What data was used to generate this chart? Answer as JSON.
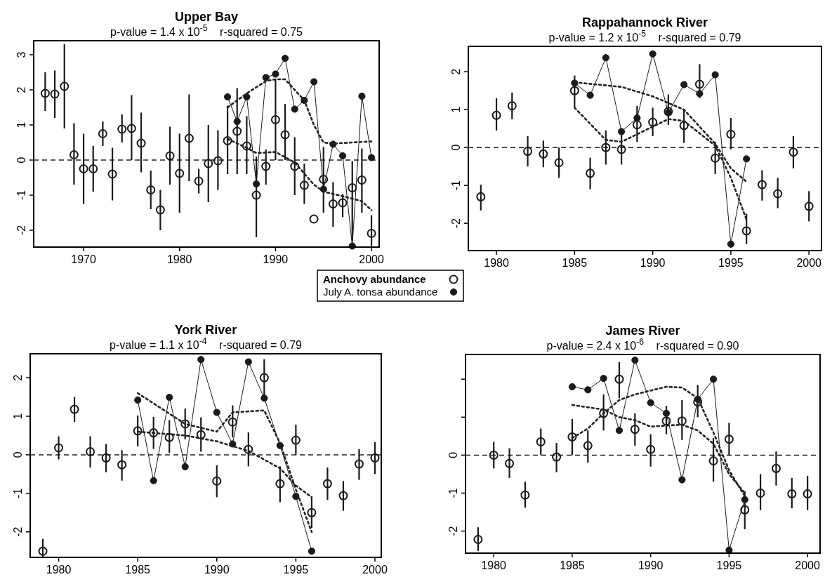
{
  "chart_data": [
    {
      "type": "scatter",
      "title": "Upper Bay",
      "subtitle": "p-value = 1.4 x 10$^{-5}$    r-squared = 0.75",
      "x": [
        1966,
        1967,
        1968,
        1969,
        1970,
        1971,
        1972,
        1973,
        1974,
        1975,
        1976,
        1977,
        1978,
        1979,
        1980,
        1981,
        1982,
        1983,
        1984,
        1985,
        1986,
        1987,
        1988,
        1989,
        1990,
        1991,
        1992,
        1993,
        1994,
        1995,
        1996,
        1997,
        1998,
        1999,
        2000
      ],
      "xlim": [
        1964.8,
        2000.8
      ],
      "ylim": [
        -2.48,
        3.4
      ],
      "xticks": [
        1970,
        1980,
        1990,
        2000
      ],
      "yticks": [
        -2,
        -1,
        0,
        1,
        2,
        3
      ],
      "legend": "bottom right",
      "ref_lines": [
        {
          "axis": "y",
          "value": 0,
          "line_style": "dashed",
          "color": "#222222"
        }
      ],
      "series": [
        {
          "name": "Anchovy abundance",
          "type": "scatter",
          "marker": "circle",
          "color": "#1a1a1a",
          "values": [
            1.9,
            1.88,
            2.1,
            0.15,
            -0.25,
            -0.25,
            0.75,
            -0.4,
            0.88,
            0.9,
            0.48,
            -0.85,
            -1.42,
            0.12,
            -0.38,
            0.62,
            -0.6,
            -0.1,
            -0.02,
            0.55,
            0.82,
            0.4,
            -1.0,
            -0.18,
            1.15,
            0.72,
            -0.18,
            -0.72,
            -1.68,
            -0.55,
            -1.25,
            -1.22,
            -0.79,
            -0.57,
            -2.09
          ],
          "errors": [
            [
              1.4,
              2.5
            ],
            [
              1.2,
              2.55
            ],
            [
              0.9,
              3.3
            ],
            [
              -0.7,
              1.05
            ],
            [
              -1.25,
              0.75
            ],
            [
              -0.9,
              0.4
            ],
            [
              0.4,
              1.1
            ],
            [
              -1.15,
              0.35
            ],
            [
              0.5,
              1.3
            ],
            [
              0,
              1.85
            ],
            [
              -0.35,
              1.35
            ],
            [
              -1.4,
              -0.3
            ],
            [
              -2.0,
              -0.85
            ],
            [
              -0.7,
              0.95
            ],
            [
              -1.5,
              0.75
            ],
            [
              -0.6,
              1.87
            ],
            [
              -0.95,
              -0.25
            ],
            [
              -1.2,
              1.0
            ],
            [
              -0.85,
              0.85
            ],
            [
              -0.4,
              1.55
            ],
            [
              -0.4,
              2.05
            ],
            [
              -0.4,
              1.25
            ],
            [
              -2.2,
              0.1
            ],
            [
              -0.7,
              0.3
            ],
            [
              0,
              2.3
            ],
            [
              0,
              1.6
            ],
            [
              -1.0,
              0.65
            ],
            [
              -1.25,
              -0.1
            ],
            null,
            [
              -1.5,
              0.37
            ],
            [
              -1.9,
              -0.63
            ],
            [
              -1.63,
              -0.97
            ],
            [
              -2.3,
              -0.03
            ],
            [
              -1.5,
              0.33
            ],
            [
              -2.45,
              -1.57
            ]
          ]
        },
        {
          "name": "July A. tonsa abundance",
          "type": "line",
          "marker": "circle",
          "color": "#1a1a1a",
          "x": [
            1985,
            1986,
            1987,
            1988,
            1989,
            1990,
            1991,
            1992,
            1993,
            1994,
            1995,
            1996,
            1997,
            1998,
            1999,
            2000
          ],
          "values": [
            1.8,
            1.1,
            1.8,
            -0.68,
            2.35,
            2.45,
            2.9,
            1.45,
            1.7,
            2.23,
            -0.83,
            0.45,
            0.12,
            -2.45,
            1.82,
            0.07
          ]
        },
        {
          "type": "line",
          "marker": "none",
          "line_style": "dotted",
          "color": "#222222",
          "x": [
            1985,
            1987,
            1989,
            1990,
            1991,
            1993,
            1994,
            1995,
            1996,
            1998,
            2000
          ],
          "values": [
            1.5,
            1.9,
            2.25,
            2.3,
            2.3,
            1.7,
            1.0,
            0.5,
            0.47,
            0.5,
            0.53
          ]
        },
        {
          "type": "line",
          "marker": "none",
          "line_style": "dotted",
          "color": "#222222",
          "x": [
            1985,
            1987,
            1988,
            1990,
            1992,
            1994,
            1995,
            1997,
            1999,
            2000
          ],
          "values": [
            0.6,
            0.35,
            0.2,
            0.23,
            -0.07,
            -0.7,
            -0.9,
            -1.03,
            -1.17,
            -1.43
          ]
        }
      ]
    },
    {
      "type": "scatter",
      "title": "Rappahannock River",
      "subtitle": "p-value = 1.2 x 10$^{-5}$    r-squared = 0.79",
      "x": [
        1979,
        1980,
        1981,
        1982,
        1983,
        1984,
        1985,
        1986,
        1987,
        1988,
        1989,
        1990,
        1991,
        1992,
        1993,
        1994,
        1995,
        1996,
        1997,
        1998,
        1999,
        2000
      ],
      "xlim": [
        1978.2,
        2000.8
      ],
      "ylim": [
        -2.72,
        2.67
      ],
      "xticks": [
        1980,
        1985,
        1990,
        1995,
        2000
      ],
      "yticks": [
        -2,
        -1,
        0,
        1,
        2
      ],
      "ref_lines": [
        {
          "axis": "y",
          "value": 0,
          "line_style": "dashed",
          "color": "#222222"
        }
      ],
      "series": [
        {
          "type": "scatter",
          "marker": "circle",
          "color": "#1a1a1a",
          "values": [
            -1.3,
            0.85,
            1.1,
            -0.1,
            -0.17,
            -0.4,
            1.5,
            -0.68,
            0,
            -0.05,
            0.6,
            0.67,
            0.95,
            0.58,
            1.67,
            -0.28,
            0.35,
            -2.2,
            -0.98,
            -1.22,
            -0.12,
            -1.55
          ],
          "errors": [
            [
              -1.66,
              -0.98
            ],
            [
              0.45,
              1.3
            ],
            [
              0.75,
              1.45
            ],
            [
              -0.5,
              0.3
            ],
            [
              -0.52,
              0.18
            ],
            [
              -0.8,
              0
            ],
            [
              1.05,
              1.9
            ],
            [
              -1.1,
              -0.27
            ],
            [
              -0.45,
              0.45
            ],
            [
              -0.45,
              0.45
            ],
            [
              0.15,
              1.1
            ],
            [
              0.3,
              1.05
            ],
            [
              0.6,
              1.4
            ],
            [
              0.12,
              1.0
            ],
            [
              1.3,
              2.2
            ],
            [
              -0.7,
              0.15
            ],
            [
              -0.05,
              0.78
            ],
            [
              -2.55,
              -1.75
            ],
            [
              -1.4,
              -0.6
            ],
            [
              -1.6,
              -0.8
            ],
            [
              -0.55,
              0.3
            ],
            [
              -1.95,
              -1.15
            ]
          ]
        },
        {
          "type": "line",
          "marker": "circle",
          "color": "#1a1a1a",
          "x": [
            1985,
            1986,
            1987,
            1988,
            1989,
            1990,
            1991,
            1992,
            1993,
            1994,
            1995,
            1996
          ],
          "values": [
            1.7,
            1.38,
            2.37,
            0.42,
            0.78,
            2.47,
            0.92,
            1.66,
            1.42,
            1.92,
            -2.55,
            -0.3
          ]
        },
        {
          "type": "line",
          "marker": "none",
          "line_style": "dotted",
          "color": "#222222",
          "x": [
            1985,
            1988,
            1990,
            1992,
            1994,
            1995,
            1996
          ],
          "values": [
            1.72,
            1.6,
            1.35,
            1.0,
            0.1,
            -0.55,
            -0.9
          ]
        },
        {
          "type": "line",
          "marker": "none",
          "line_style": "dotted",
          "color": "#222222",
          "x": [
            1985,
            1987,
            1988,
            1990,
            1991,
            1992,
            1994,
            1995,
            1996
          ],
          "values": [
            1.05,
            0.2,
            0.15,
            0.55,
            0.75,
            0.7,
            0.05,
            -0.8,
            -1.9
          ]
        }
      ]
    },
    {
      "type": "scatter",
      "title": "York River",
      "subtitle": "p-value = 1.1 x 10$^{-4}$    r-squared = 0.79",
      "x": [
        1979,
        1980,
        1981,
        1982,
        1983,
        1984,
        1985,
        1986,
        1987,
        1988,
        1989,
        1990,
        1991,
        1992,
        1993,
        1994,
        1995,
        1996,
        1997,
        1998,
        1999,
        2000
      ],
      "xlim": [
        1978.2,
        2000.4
      ],
      "ylim": [
        -2.66,
        2.62
      ],
      "xticks": [
        1980,
        1985,
        1990,
        1995,
        2000
      ],
      "yticks": [
        -2,
        -1,
        0,
        1,
        2
      ],
      "ref_lines": [
        {
          "axis": "y",
          "value": 0,
          "line_style": "dashed",
          "color": "#222222"
        }
      ],
      "series": [
        {
          "type": "scatter",
          "marker": "circle",
          "color": "#1a1a1a",
          "values": [
            -2.5,
            0.18,
            1.18,
            0.08,
            -0.08,
            -0.26,
            0.62,
            0.57,
            0.45,
            0.8,
            0.52,
            -0.68,
            0.85,
            0.14,
            2.0,
            -0.75,
            0.38,
            -1.5,
            -0.75,
            -1.06,
            -0.24,
            -0.08
          ],
          "errors": [
            [
              -2.65,
              -2.18
            ],
            [
              -0.12,
              0.48
            ],
            [
              0.85,
              1.5
            ],
            [
              -0.33,
              0.48
            ],
            [
              -0.45,
              0.28
            ],
            [
              -0.67,
              0.12
            ],
            [
              0.22,
              1.02
            ],
            [
              0.15,
              0.98
            ],
            [
              0.05,
              0.9
            ],
            [
              0.4,
              1.2
            ],
            [
              0.08,
              0.97
            ],
            [
              -1.1,
              -0.27
            ],
            [
              0.45,
              1.28
            ],
            [
              -0.3,
              0.58
            ],
            [
              1.55,
              2.48
            ],
            [
              -1.23,
              -0.3
            ],
            [
              0,
              0.78
            ],
            [
              -1.9,
              -1.1
            ],
            [
              -1.17,
              -0.33
            ],
            [
              -1.45,
              -0.68
            ],
            [
              -0.65,
              0.15
            ],
            [
              -0.5,
              0.33
            ]
          ]
        },
        {
          "type": "line",
          "marker": "circle",
          "color": "#1a1a1a",
          "x": [
            1985,
            1986,
            1987,
            1988,
            1989,
            1990,
            1991,
            1992,
            1993,
            1994,
            1995,
            1996
          ],
          "values": [
            1.42,
            -0.67,
            1.49,
            -0.31,
            2.47,
            1.1,
            0.28,
            2.41,
            1.47,
            0.24,
            -1.08,
            -2.5
          ]
        },
        {
          "type": "line",
          "marker": "none",
          "line_style": "dotted",
          "color": "#222222",
          "x": [
            1985,
            1988,
            1990,
            1991,
            1993,
            1994,
            1995,
            1996
          ],
          "values": [
            1.6,
            0.8,
            0.6,
            1.1,
            1.15,
            0.3,
            -0.9,
            -2.0
          ]
        },
        {
          "type": "line",
          "marker": "none",
          "line_style": "dotted",
          "color": "#222222",
          "x": [
            1985,
            1988,
            1990,
            1992,
            1994,
            1995,
            1996
          ],
          "values": [
            0.6,
            0.5,
            0.35,
            0.1,
            -0.35,
            -0.8,
            -1.1
          ]
        }
      ]
    },
    {
      "type": "scatter",
      "title": "James River",
      "subtitle": "p-value = 2.4 x 10$^{-6}$    r-squared = 0.90",
      "x": [
        1979,
        1980,
        1981,
        1982,
        1983,
        1984,
        1985,
        1986,
        1987,
        1988,
        1989,
        1990,
        1991,
        1992,
        1993,
        1994,
        1995,
        1996,
        1997,
        1998,
        1999,
        2000
      ],
      "xlim": [
        1978.2,
        2000.8
      ],
      "ylim": [
        -2.58,
        2.65
      ],
      "xticks": [
        1980,
        1985,
        1990,
        1995,
        2000
      ],
      "yticks": [
        -2,
        -1,
        0,
        {
          "value": 1,
          "label": null
        },
        {
          "value": 2,
          "label": null
        }
      ],
      "ref_lines": [
        {
          "axis": "y",
          "value": 0,
          "line_style": "dashed",
          "color": "#222222"
        }
      ],
      "series": [
        {
          "type": "scatter",
          "marker": "circle",
          "color": "#1a1a1a",
          "values": [
            -2.22,
            0,
            -0.22,
            -1.05,
            0.35,
            -0.05,
            0.48,
            0.25,
            1.1,
            2.0,
            0.68,
            0.15,
            0.9,
            0.9,
            1.4,
            -0.15,
            0.42,
            -1.44,
            -1.0,
            -0.35,
            -1.02,
            -1.02
          ],
          "errors": [
            [
              -2.52,
              -1.9
            ],
            [
              -0.35,
              0.35
            ],
            [
              -0.6,
              0.18
            ],
            [
              -1.38,
              -0.7
            ],
            [
              0,
              0.7
            ],
            [
              -0.45,
              0.32
            ],
            [
              0,
              0.95
            ],
            [
              -0.2,
              0.65
            ],
            [
              0.65,
              1.6
            ],
            [
              1.5,
              2.45
            ],
            [
              0.25,
              1.1
            ],
            [
              -0.3,
              0.55
            ],
            [
              0.55,
              1.3
            ],
            [
              0.4,
              1.45
            ],
            [
              1.0,
              1.85
            ],
            [
              -0.7,
              0.45
            ],
            [
              0,
              0.85
            ],
            [
              -1.95,
              -0.95
            ],
            [
              -1.45,
              -0.5
            ],
            [
              -0.8,
              0.1
            ],
            [
              -1.4,
              -0.6
            ],
            [
              -1.45,
              -0.55
            ]
          ]
        },
        {
          "type": "line",
          "marker": "circle",
          "color": "#1a1a1a",
          "x": [
            1985,
            1986,
            1987,
            1988,
            1989,
            1990,
            1991,
            1992,
            1993,
            1994,
            1995,
            1996
          ],
          "values": [
            1.8,
            1.72,
            2.02,
            0.65,
            2.5,
            1.38,
            1.1,
            -0.65,
            1.47,
            2.0,
            -2.5,
            -1.17
          ]
        },
        {
          "type": "line",
          "marker": "none",
          "line_style": "dotted",
          "color": "#222222",
          "x": [
            1985,
            1987,
            1988,
            1989,
            1990,
            1991,
            1992,
            1993,
            1994,
            1995,
            1996
          ],
          "values": [
            1.32,
            1.2,
            1.0,
            0.92,
            0.75,
            0.78,
            0.8,
            0.65,
            0.3,
            -0.5,
            -1.0
          ]
        },
        {
          "type": "line",
          "marker": "none",
          "line_style": "dotted",
          "color": "#222222",
          "x": [
            1985,
            1986,
            1987,
            1988,
            1989,
            1990,
            1991,
            1992,
            1993,
            1994,
            1995,
            1996
          ],
          "values": [
            0.45,
            0.7,
            1.1,
            1.45,
            1.6,
            1.7,
            1.8,
            1.78,
            1.5,
            0.6,
            -0.4,
            -1.08
          ]
        }
      ]
    }
  ]
}
